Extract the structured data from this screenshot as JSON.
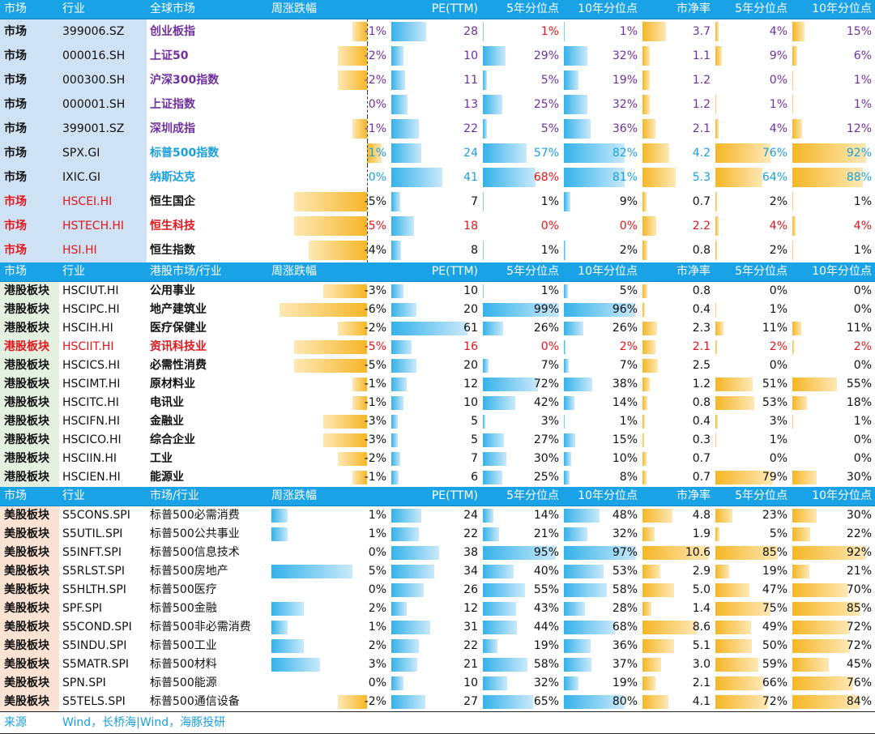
{
  "colors": {
    "header_bg": "#19a3e6",
    "bar_blue": "#35b2ea",
    "bar_gold": "#f6b626",
    "red": "#e4161b",
    "blue": "#1a9fe0",
    "purple": "#7030a0"
  },
  "sections": [
    {
      "group": "g1",
      "header": [
        "市场",
        "行业",
        "全球市场",
        "周涨跌幅",
        "PE(TTM)",
        "5年分位点",
        "10年分位点",
        "市净率",
        "5年分位点",
        "10年分位点"
      ],
      "rows": [
        {
          "cat": "市场",
          "code": "399006.SZ",
          "name": "创业板指",
          "chg": "-1%",
          "chgv": -1,
          "pe": "28",
          "pe5": "1%",
          "pe10": "1%",
          "pb": "3.7",
          "pb5": "4%",
          "pb10": "15%",
          "cls": "purple",
          "pe5cls": "red"
        },
        {
          "cat": "市场",
          "code": "000016.SH",
          "name": "上证50",
          "chg": "-2%",
          "chgv": -2,
          "pe": "10",
          "pe5": "29%",
          "pe10": "32%",
          "pb": "1.1",
          "pb5": "9%",
          "pb10": "6%",
          "cls": "purple"
        },
        {
          "cat": "市场",
          "code": "000300.SH",
          "name": "沪深300指数",
          "chg": "-2%",
          "chgv": -2,
          "pe": "11",
          "pe5": "5%",
          "pe10": "19%",
          "pb": "1.2",
          "pb5": "0%",
          "pb10": "1%",
          "cls": "purple"
        },
        {
          "cat": "市场",
          "code": "000001.SH",
          "name": "上证指数",
          "chg": "0%",
          "chgv": 0,
          "pe": "13",
          "pe5": "25%",
          "pe10": "32%",
          "pb": "1.2",
          "pb5": "1%",
          "pb10": "1%",
          "cls": "purple"
        },
        {
          "cat": "市场",
          "code": "399001.SZ",
          "name": "深圳成指",
          "chg": "-1%",
          "chgv": -1,
          "pe": "22",
          "pe5": "5%",
          "pe10": "36%",
          "pb": "2.1",
          "pb5": "4%",
          "pb10": "12%",
          "cls": "purple"
        },
        {
          "cat": "市场",
          "code": "SPX.GI",
          "name": "标普500指数",
          "chg": "1%",
          "chgv": 1,
          "pe": "24",
          "pe5": "57%",
          "pe10": "82%",
          "pb": "4.2",
          "pb5": "76%",
          "pb10": "92%",
          "cls": "blue-t"
        },
        {
          "cat": "市场",
          "code": "IXIC.GI",
          "name": "纳斯达克",
          "chg": "0%",
          "chgv": 0,
          "pe": "41",
          "pe5": "68%",
          "pe10": "81%",
          "pb": "5.3",
          "pb5": "64%",
          "pb10": "88%",
          "cls": "blue-t",
          "pe5cls": "red"
        },
        {
          "cat": "市场",
          "code": "HSCEI.HI",
          "name": "恒生国企",
          "chg": "-5%",
          "chgv": -5,
          "pe": "7",
          "pe5": "1%",
          "pe10": "9%",
          "pb": "0.7",
          "pb5": "2%",
          "pb10": "1%",
          "cls": "black",
          "catcls": "red",
          "codecls": "red"
        },
        {
          "cat": "市场",
          "code": "HSTECH.HI",
          "name": "恒生科技",
          "chg": "-5%",
          "chgv": -5,
          "pe": "18",
          "pe5": "0%",
          "pe10": "0%",
          "pb": "2.2",
          "pb5": "4%",
          "pb10": "4%",
          "cls": "red",
          "allred": true
        },
        {
          "cat": "市场",
          "code": "HSI.HI",
          "name": "恒生指数",
          "chg": "-4%",
          "chgv": -4,
          "pe": "8",
          "pe5": "1%",
          "pe10": "2%",
          "pb": "0.8",
          "pb5": "2%",
          "pb10": "1%",
          "cls": "black",
          "catcls": "red",
          "codecls": "red"
        }
      ]
    },
    {
      "group": "g2",
      "header": [
        "市场",
        "行业",
        "港股市场/行业",
        "周涨跌幅",
        "PE(TTM)",
        "5年分位点",
        "10年分位点",
        "市净率",
        "5年分位点",
        "10年分位点"
      ],
      "rows": [
        {
          "cat": "港股板块",
          "code": "HSCIUT.HI",
          "name": "公用事业",
          "chg": "-3%",
          "chgv": -3,
          "pe": "10",
          "pe5": "1%",
          "pe10": "5%",
          "pb": "0.8",
          "pb5": "0%",
          "pb10": "0%",
          "cls": "black"
        },
        {
          "cat": "港股板块",
          "code": "HSCIPC.HI",
          "name": "地产建筑业",
          "chg": "-6%",
          "chgv": -6,
          "pe": "20",
          "pe5": "99%",
          "pe10": "96%",
          "pb": "0.4",
          "pb5": "1%",
          "pb10": "0%",
          "cls": "black"
        },
        {
          "cat": "港股板块",
          "code": "HSCIH.HI",
          "name": "医疗保健业",
          "chg": "-2%",
          "chgv": -2,
          "pe": "61",
          "pe5": "26%",
          "pe10": "26%",
          "pb": "2.3",
          "pb5": "11%",
          "pb10": "11%",
          "cls": "black"
        },
        {
          "cat": "港股板块",
          "code": "HSCIIT.HI",
          "name": "资讯科技业",
          "chg": "-5%",
          "chgv": -5,
          "pe": "16",
          "pe5": "0%",
          "pe10": "2%",
          "pb": "2.1",
          "pb5": "2%",
          "pb10": "2%",
          "cls": "red",
          "allred": true
        },
        {
          "cat": "港股板块",
          "code": "HSCICS.HI",
          "name": "必需性消费",
          "chg": "-5%",
          "chgv": -5,
          "pe": "20",
          "pe5": "7%",
          "pe10": "7%",
          "pb": "2.5",
          "pb5": "0%",
          "pb10": "0%",
          "cls": "black"
        },
        {
          "cat": "港股板块",
          "code": "HSCIMT.HI",
          "name": "原材料业",
          "chg": "-1%",
          "chgv": -1,
          "pe": "12",
          "pe5": "72%",
          "pe10": "38%",
          "pb": "1.2",
          "pb5": "51%",
          "pb10": "55%",
          "cls": "black"
        },
        {
          "cat": "港股板块",
          "code": "HSCITC.HI",
          "name": "电讯业",
          "chg": "-1%",
          "chgv": -1,
          "pe": "10",
          "pe5": "42%",
          "pe10": "14%",
          "pb": "0.8",
          "pb5": "53%",
          "pb10": "18%",
          "cls": "black"
        },
        {
          "cat": "港股板块",
          "code": "HSCIFN.HI",
          "name": "金融业",
          "chg": "-3%",
          "chgv": -3,
          "pe": "5",
          "pe5": "3%",
          "pe10": "1%",
          "pb": "0.4",
          "pb5": "3%",
          "pb10": "1%",
          "cls": "black"
        },
        {
          "cat": "港股板块",
          "code": "HSCICO.HI",
          "name": "综合企业",
          "chg": "-3%",
          "chgv": -3,
          "pe": "5",
          "pe5": "27%",
          "pe10": "15%",
          "pb": "0.3",
          "pb5": "1%",
          "pb10": "0%",
          "cls": "black"
        },
        {
          "cat": "港股板块",
          "code": "HSCIIN.HI",
          "name": "工业",
          "chg": "-2%",
          "chgv": -2,
          "pe": "7",
          "pe5": "30%",
          "pe10": "10%",
          "pb": "0.7",
          "pb5": "0%",
          "pb10": "0%",
          "cls": "black"
        },
        {
          "cat": "港股板块",
          "code": "HSCIEN.HI",
          "name": "能源业",
          "chg": "-1%",
          "chgv": -1,
          "pe": "6",
          "pe5": "25%",
          "pe10": "8%",
          "pb": "0.7",
          "pb5": "79%",
          "pb10": "30%",
          "cls": "black"
        }
      ]
    },
    {
      "group": "g3",
      "header": [
        "市场",
        "行业",
        "市场/行业",
        "周涨跌幅",
        "PE(TTM)",
        "5年分位点",
        "10年分位点",
        "市净率",
        "5年分位点",
        "10年分位点"
      ],
      "rows": [
        {
          "cat": "美股板块",
          "code": "S5CONS.SPI",
          "name": "标普500必需消费",
          "chg": "1%",
          "chgv": 1,
          "pe": "24",
          "pe5": "14%",
          "pe10": "48%",
          "pb": "4.8",
          "pb5": "23%",
          "pb10": "30%",
          "cls": "plain"
        },
        {
          "cat": "美股板块",
          "code": "S5UTIL.SPI",
          "name": "标普500公共事业",
          "chg": "1%",
          "chgv": 1,
          "pe": "22",
          "pe5": "21%",
          "pe10": "32%",
          "pb": "1.9",
          "pb5": "5%",
          "pb10": "22%",
          "cls": "plain"
        },
        {
          "cat": "美股板块",
          "code": "S5INFT.SPI",
          "name": "标普500信息技术",
          "chg": "0%",
          "chgv": 0,
          "pe": "38",
          "pe5": "95%",
          "pe10": "97%",
          "pb": "10.6",
          "pb5": "85%",
          "pb10": "92%",
          "cls": "plain"
        },
        {
          "cat": "美股板块",
          "code": "S5RLST.SPI",
          "name": "标普500房地产",
          "chg": "5%",
          "chgv": 5,
          "pe": "34",
          "pe5": "40%",
          "pe10": "53%",
          "pb": "2.9",
          "pb5": "19%",
          "pb10": "21%",
          "cls": "plain"
        },
        {
          "cat": "美股板块",
          "code": "S5HLTH.SPI",
          "name": "标普500医疗",
          "chg": "0%",
          "chgv": 0,
          "pe": "26",
          "pe5": "55%",
          "pe10": "58%",
          "pb": "5.0",
          "pb5": "47%",
          "pb10": "70%",
          "cls": "plain"
        },
        {
          "cat": "美股板块",
          "code": "SPF.SPI",
          "name": "标普500金融",
          "chg": "2%",
          "chgv": 2,
          "pe": "12",
          "pe5": "43%",
          "pe10": "28%",
          "pb": "1.4",
          "pb5": "75%",
          "pb10": "85%",
          "cls": "plain"
        },
        {
          "cat": "美股板块",
          "code": "S5COND.SPI",
          "name": "标普500非必需消费",
          "chg": "1%",
          "chgv": 1,
          "pe": "31",
          "pe5": "44%",
          "pe10": "68%",
          "pb": "8.6",
          "pb5": "49%",
          "pb10": "72%",
          "cls": "plain"
        },
        {
          "cat": "美股板块",
          "code": "S5INDU.SPI",
          "name": "标普500工业",
          "chg": "2%",
          "chgv": 2,
          "pe": "22",
          "pe5": "19%",
          "pe10": "36%",
          "pb": "5.1",
          "pb5": "50%",
          "pb10": "72%",
          "cls": "plain"
        },
        {
          "cat": "美股板块",
          "code": "S5MATR.SPI",
          "name": "标普500材料",
          "chg": "3%",
          "chgv": 3,
          "pe": "21",
          "pe5": "58%",
          "pe10": "37%",
          "pb": "3.0",
          "pb5": "59%",
          "pb10": "45%",
          "cls": "plain"
        },
        {
          "cat": "美股板块",
          "code": "SPN.SPI",
          "name": "标普500能源",
          "chg": "0%",
          "chgv": 0,
          "pe": "10",
          "pe5": "32%",
          "pe10": "19%",
          "pb": "2.1",
          "pb5": "66%",
          "pb10": "76%",
          "cls": "plain"
        },
        {
          "cat": "美股板块",
          "code": "S5TELS.SPI",
          "name": "标普500通信设备",
          "chg": "-2%",
          "chgv": -2,
          "pe": "27",
          "pe5": "65%",
          "pe10": "80%",
          "pb": "4.1",
          "pb5": "72%",
          "pb10": "84%",
          "cls": "plain"
        }
      ]
    }
  ],
  "source": {
    "label": "来源",
    "text": "Wind，长桥海|Wind，海豚投研"
  }
}
